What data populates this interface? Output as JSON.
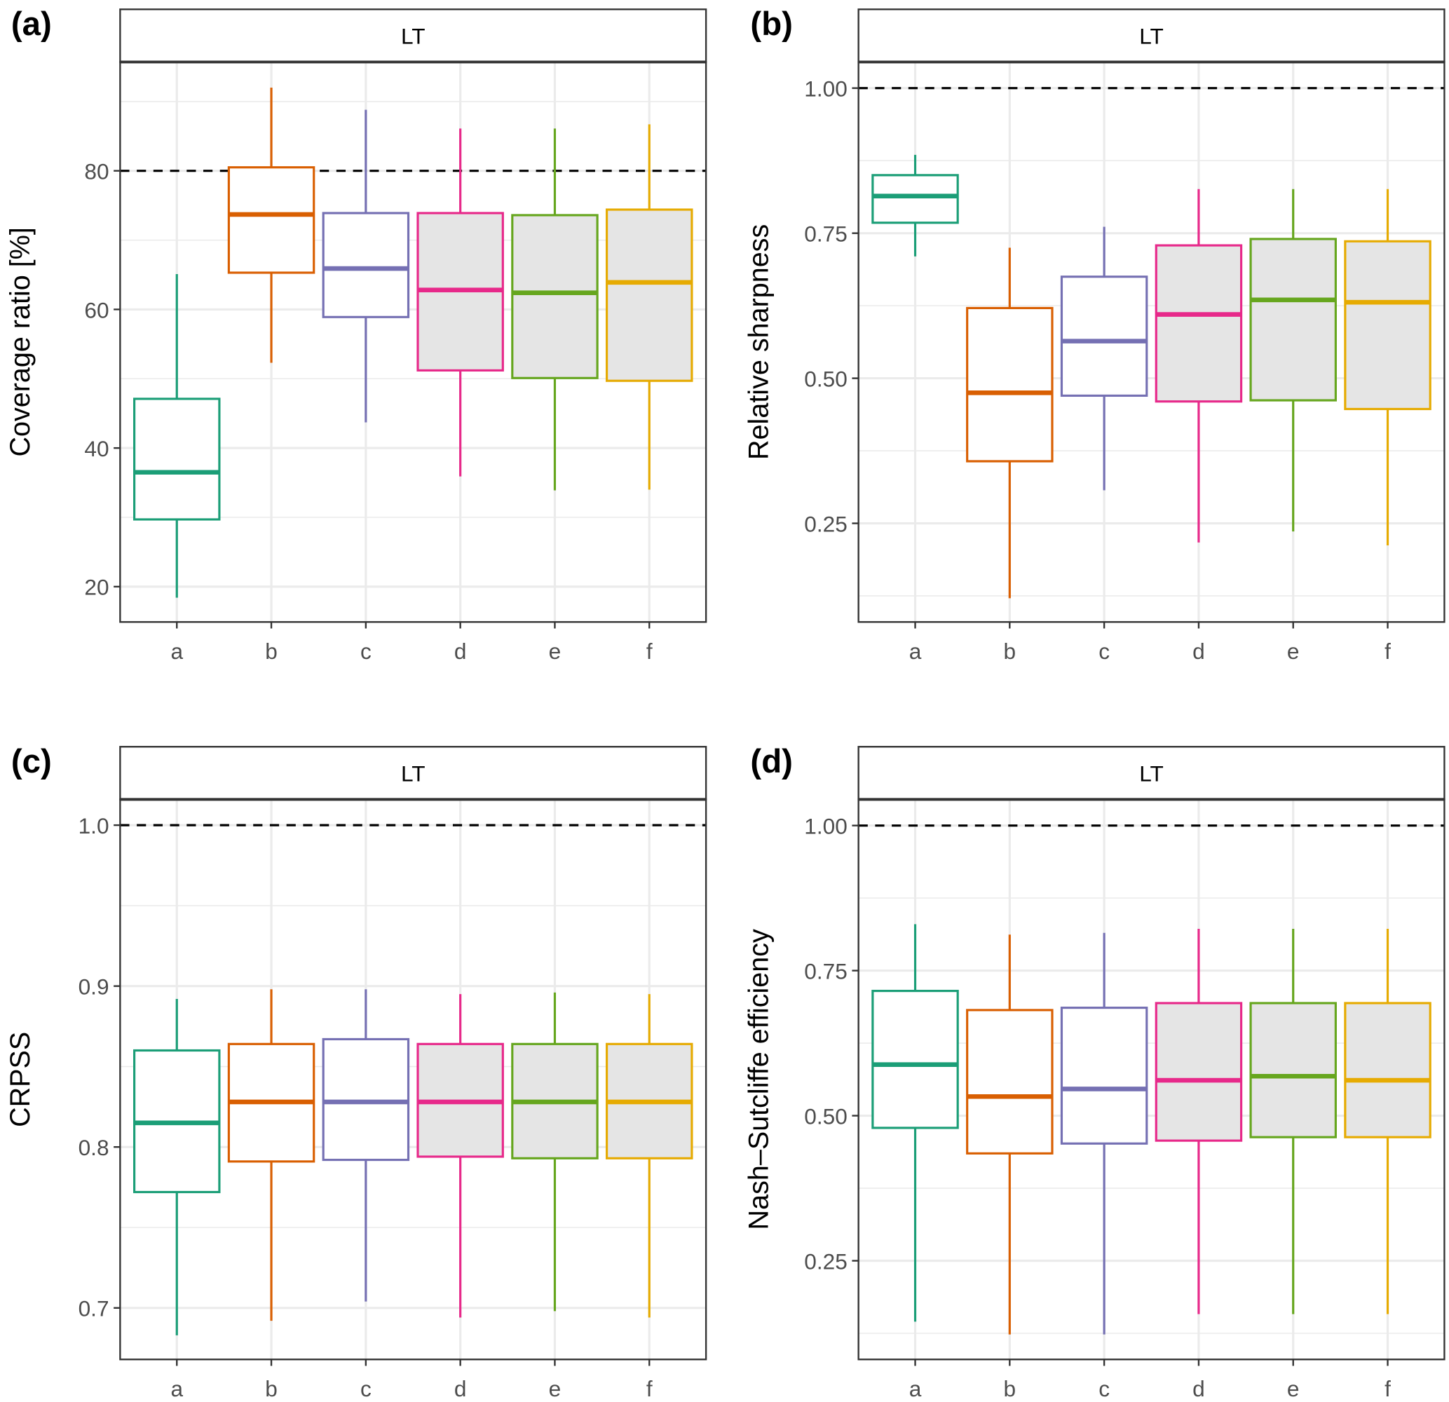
{
  "chart_data": [
    {
      "type": "box",
      "panel_label": "(a)",
      "strip": "LT",
      "ylabel": "Coverage ratio [%]",
      "categories": [
        "a",
        "b",
        "c",
        "d",
        "e",
        "f"
      ],
      "ylim": [
        14.9,
        95.7
      ],
      "yticks": [
        20,
        40,
        60,
        80
      ],
      "ytick_labels": [
        "20",
        "40",
        "60",
        "80"
      ],
      "yminor": [
        30,
        50,
        70,
        90
      ],
      "reference_line": 80,
      "boxes": [
        {
          "low": 18.4,
          "q1": 29.7,
          "median": 36.5,
          "q3": 47.1,
          "high": 65.1
        },
        {
          "low": 52.3,
          "q1": 65.3,
          "median": 73.7,
          "q3": 80.5,
          "high": 92.0
        },
        {
          "low": 43.7,
          "q1": 58.9,
          "median": 65.9,
          "q3": 73.9,
          "high": 88.8
        },
        {
          "low": 35.9,
          "q1": 51.2,
          "median": 62.8,
          "q3": 73.9,
          "high": 86.1
        },
        {
          "low": 33.9,
          "q1": 50.1,
          "median": 62.4,
          "q3": 73.6,
          "high": 86.1
        },
        {
          "low": 34.0,
          "q1": 49.7,
          "median": 63.9,
          "q3": 74.4,
          "high": 86.7
        }
      ]
    },
    {
      "type": "box",
      "panel_label": "(b)",
      "strip": "LT",
      "ylabel": "Relative sharpness",
      "categories": [
        "a",
        "b",
        "c",
        "d",
        "e",
        "f"
      ],
      "ylim": [
        0.08,
        1.045
      ],
      "yticks": [
        0.25,
        0.5,
        0.75,
        1.0
      ],
      "ytick_labels": [
        "0.25",
        "0.50",
        "0.75",
        "1.00"
      ],
      "yminor": [
        0.125,
        0.375,
        0.625,
        0.875
      ],
      "reference_line": 1.0,
      "boxes": [
        {
          "low": 0.71,
          "q1": 0.768,
          "median": 0.814,
          "q3": 0.85,
          "high": 0.885
        },
        {
          "low": 0.121,
          "q1": 0.357,
          "median": 0.475,
          "q3": 0.621,
          "high": 0.725
        },
        {
          "low": 0.307,
          "q1": 0.47,
          "median": 0.564,
          "q3": 0.675,
          "high": 0.761
        },
        {
          "low": 0.217,
          "q1": 0.46,
          "median": 0.61,
          "q3": 0.729,
          "high": 0.826
        },
        {
          "low": 0.236,
          "q1": 0.462,
          "median": 0.635,
          "q3": 0.74,
          "high": 0.826
        },
        {
          "low": 0.212,
          "q1": 0.447,
          "median": 0.631,
          "q3": 0.736,
          "high": 0.826
        }
      ]
    },
    {
      "type": "box",
      "panel_label": "(c)",
      "strip": "LT",
      "ylabel": "CRPSS",
      "categories": [
        "a",
        "b",
        "c",
        "d",
        "e",
        "f"
      ],
      "ylim": [
        0.668,
        1.016
      ],
      "yticks": [
        0.7,
        0.8,
        0.9,
        1.0
      ],
      "ytick_labels": [
        "0.7",
        "0.8",
        "0.9",
        "1.0"
      ],
      "yminor": [
        0.75,
        0.85,
        0.95
      ],
      "reference_line": 1.0,
      "boxes": [
        {
          "low": 0.683,
          "q1": 0.772,
          "median": 0.815,
          "q3": 0.86,
          "high": 0.892
        },
        {
          "low": 0.692,
          "q1": 0.791,
          "median": 0.828,
          "q3": 0.864,
          "high": 0.898
        },
        {
          "low": 0.704,
          "q1": 0.792,
          "median": 0.828,
          "q3": 0.867,
          "high": 0.898
        },
        {
          "low": 0.694,
          "q1": 0.794,
          "median": 0.828,
          "q3": 0.864,
          "high": 0.895
        },
        {
          "low": 0.698,
          "q1": 0.793,
          "median": 0.828,
          "q3": 0.864,
          "high": 0.896
        },
        {
          "low": 0.694,
          "q1": 0.793,
          "median": 0.828,
          "q3": 0.864,
          "high": 0.895
        }
      ]
    },
    {
      "type": "box",
      "panel_label": "(d)",
      "strip": "LT",
      "ylabel": "Nash–Sutcliffe efficiency",
      "categories": [
        "a",
        "b",
        "c",
        "d",
        "e",
        "f"
      ],
      "ylim": [
        0.08,
        1.045
      ],
      "yticks": [
        0.25,
        0.5,
        0.75,
        1.0
      ],
      "ytick_labels": [
        "0.25",
        "0.50",
        "0.75",
        "1.00"
      ],
      "yminor": [
        0.125,
        0.375,
        0.625,
        0.875
      ],
      "reference_line": 1.0,
      "boxes": [
        {
          "low": 0.145,
          "q1": 0.479,
          "median": 0.588,
          "q3": 0.715,
          "high": 0.83
        },
        {
          "low": 0.123,
          "q1": 0.435,
          "median": 0.533,
          "q3": 0.682,
          "high": 0.812
        },
        {
          "low": 0.123,
          "q1": 0.452,
          "median": 0.546,
          "q3": 0.686,
          "high": 0.815
        },
        {
          "low": 0.158,
          "q1": 0.457,
          "median": 0.561,
          "q3": 0.694,
          "high": 0.822
        },
        {
          "low": 0.158,
          "q1": 0.463,
          "median": 0.568,
          "q3": 0.694,
          "high": 0.822
        },
        {
          "low": 0.158,
          "q1": 0.463,
          "median": 0.561,
          "q3": 0.694,
          "high": 0.822
        }
      ]
    }
  ],
  "colors": {
    "series": [
      "#1B9E77",
      "#D95F02",
      "#7570B3",
      "#E7298A",
      "#66A61E",
      "#E6AB02"
    ],
    "box_fill": [
      "#FFFFFF",
      "#FFFFFF",
      "#FFFFFF",
      "#E5E5E5",
      "#E5E5E5",
      "#E5E5E5"
    ],
    "grid": "#EBEBEB",
    "reference_line": "#000000"
  }
}
